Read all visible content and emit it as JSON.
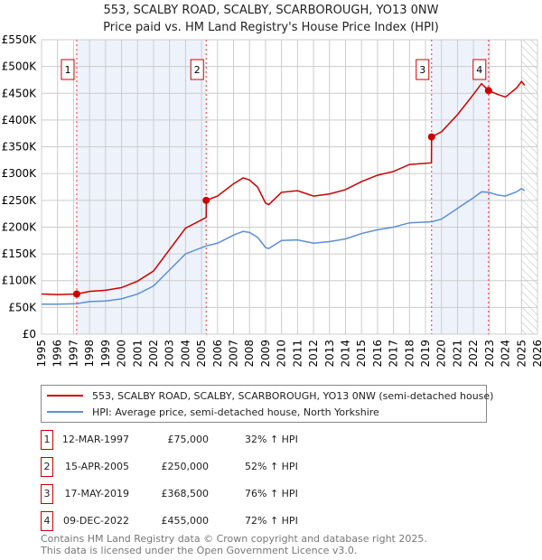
{
  "title": "553, SCALBY ROAD, SCALBY, SCARBOROUGH, YO13 0NW",
  "subtitle": "Price paid vs. HM Land Registry's House Price Index (HPI)",
  "colors": {
    "property": "#cc0000",
    "hpi": "#5b8fd4",
    "shade": "#eef3fb"
  },
  "chart_data": {
    "type": "line",
    "xlim": [
      1995,
      2026
    ],
    "ylim": [
      0,
      550000
    ],
    "y_ticks": [
      0,
      50000,
      100000,
      150000,
      200000,
      250000,
      300000,
      350000,
      400000,
      450000,
      500000,
      550000
    ],
    "y_tick_labels": [
      "£0",
      "£50K",
      "£100K",
      "£150K",
      "£200K",
      "£250K",
      "£300K",
      "£350K",
      "£400K",
      "£450K",
      "£500K",
      "£550K"
    ],
    "x_ticks": [
      "1995",
      "1996",
      "1997",
      "1998",
      "1999",
      "2000",
      "2001",
      "2002",
      "2003",
      "2004",
      "2005",
      "2006",
      "2007",
      "2008",
      "2009",
      "2010",
      "2011",
      "2012",
      "2013",
      "2014",
      "2015",
      "2016",
      "2017",
      "2018",
      "2019",
      "2020",
      "2021",
      "2022",
      "2023",
      "2024",
      "2025",
      "2026"
    ],
    "grid": true,
    "forecast_hatch_from": 2025.0,
    "series": [
      {
        "name": "553, SCALBY ROAD, SCALBY, SCARBOROUGH, YO13 0NW (semi-detached house)",
        "x": [
          1995,
          1996,
          1997.2,
          1998,
          1999,
          2000,
          2001,
          2002,
          2003,
          2004,
          2005.29,
          2005.3,
          2006,
          2007,
          2007.6,
          2008,
          2008.5,
          2009,
          2009.2,
          2010,
          2011,
          2012,
          2013,
          2014,
          2015,
          2016,
          2017,
          2018,
          2019.37,
          2019.38,
          2020,
          2021,
          2022,
          2022.5,
          2022.94,
          2023.5,
          2024,
          2024.7,
          2025,
          2025.2
        ],
        "values": [
          75000,
          74000,
          75000,
          80000,
          82000,
          87000,
          99000,
          118000,
          158000,
          198000,
          218000,
          250000,
          258000,
          281000,
          292000,
          288000,
          275000,
          245000,
          242000,
          265000,
          268000,
          258000,
          262000,
          270000,
          285000,
          297000,
          304000,
          317000,
          320000,
          368500,
          378000,
          410000,
          448000,
          468000,
          455000,
          448000,
          443000,
          460000,
          472000,
          465000
        ]
      },
      {
        "name": "HPI: Average price, semi-detached house, North Yorkshire",
        "x": [
          1995,
          1996,
          1997.2,
          1998,
          1999,
          2000,
          2001,
          2002,
          2003,
          2004,
          2005.3,
          2006,
          2007,
          2007.6,
          2008,
          2008.5,
          2009,
          2009.2,
          2010,
          2011,
          2012,
          2013,
          2014,
          2015,
          2016,
          2017,
          2018,
          2019.4,
          2020,
          2021,
          2022,
          2022.5,
          2022.94,
          2023.5,
          2024,
          2024.7,
          2025,
          2025.2
        ],
        "values": [
          56000,
          56000,
          57000,
          61000,
          62000,
          66000,
          75000,
          90000,
          120000,
          150000,
          165000,
          170000,
          185000,
          192000,
          190000,
          181000,
          162000,
          160000,
          175000,
          176000,
          170000,
          173000,
          178000,
          188000,
          195000,
          200000,
          208000,
          210000,
          215000,
          235000,
          255000,
          266000,
          265000,
          260000,
          258000,
          266000,
          272000,
          268000
        ]
      }
    ],
    "sales": [
      {
        "label": "1",
        "x": 1997.2,
        "date": "12-MAR-1997",
        "price": 75000,
        "price_label": "£75,000",
        "hpi": "32% ↑ HPI"
      },
      {
        "label": "2",
        "x": 2005.29,
        "date": "15-APR-2005",
        "price": 250000,
        "price_label": "£250,000",
        "hpi": "52% ↑ HPI"
      },
      {
        "label": "3",
        "x": 2019.38,
        "date": "17-MAY-2019",
        "price": 368500,
        "price_label": "£368,500",
        "hpi": "76% ↑ HPI"
      },
      {
        "label": "4",
        "x": 2022.94,
        "date": "09-DEC-2022",
        "price": 455000,
        "price_label": "£455,000",
        "hpi": "72% ↑ HPI"
      }
    ]
  },
  "legend": {
    "property": "553, SCALBY ROAD, SCALBY, SCARBOROUGH, YO13 0NW (semi-detached house)",
    "hpi": "HPI: Average price, semi-detached house, North Yorkshire"
  },
  "footer": {
    "line1": "Contains HM Land Registry data © Crown copyright and database right 2025.",
    "line2": "This data is licensed under the Open Government Licence v3.0."
  }
}
